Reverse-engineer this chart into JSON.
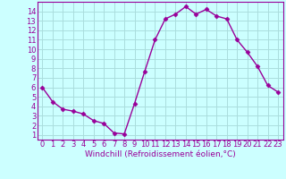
{
  "x": [
    0,
    1,
    2,
    3,
    4,
    5,
    6,
    7,
    8,
    9,
    10,
    11,
    12,
    13,
    14,
    15,
    16,
    17,
    18,
    19,
    20,
    21,
    22,
    23
  ],
  "y": [
    6.0,
    4.5,
    3.7,
    3.5,
    3.2,
    2.5,
    2.2,
    1.2,
    1.1,
    4.3,
    7.7,
    11.0,
    13.2,
    13.7,
    14.5,
    13.7,
    14.2,
    13.5,
    13.2,
    11.0,
    9.7,
    8.2,
    6.2,
    5.5
  ],
  "line_color": "#990099",
  "marker": "D",
  "markersize": 2.5,
  "linewidth": 1.0,
  "xlabel": "Windchill (Refroidissement éolien,°C)",
  "xlim": [
    -0.5,
    23.5
  ],
  "ylim": [
    0.5,
    15.0
  ],
  "yticks": [
    1,
    2,
    3,
    4,
    5,
    6,
    7,
    8,
    9,
    10,
    11,
    12,
    13,
    14
  ],
  "xticks": [
    0,
    1,
    2,
    3,
    4,
    5,
    6,
    7,
    8,
    9,
    10,
    11,
    12,
    13,
    14,
    15,
    16,
    17,
    18,
    19,
    20,
    21,
    22,
    23
  ],
  "bg_color": "#ccffff",
  "grid_color": "#aadddd",
  "spine_color": "#990099",
  "tick_color": "#990099",
  "label_color": "#990099",
  "xlabel_fontsize": 6.5,
  "tick_fontsize": 6.0
}
